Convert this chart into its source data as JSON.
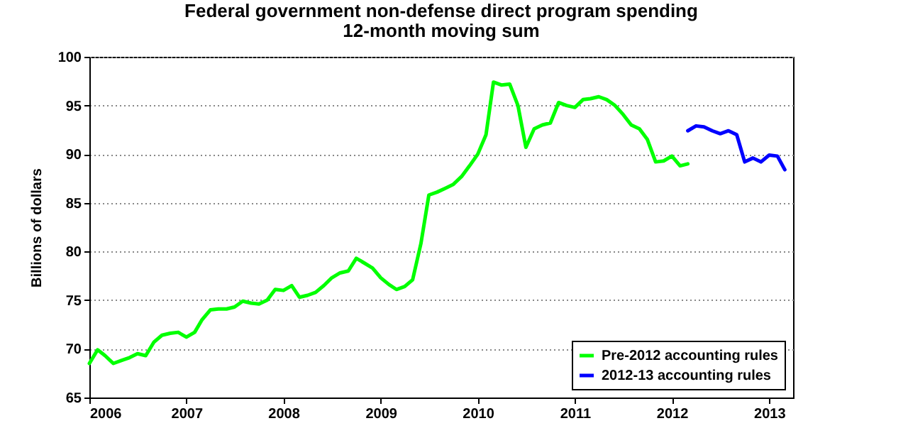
{
  "chart_data": {
    "type": "line",
    "title": "Federal government non-defense direct program spending",
    "subtitle": "12-month moving sum",
    "ylabel": "Billions of dollars",
    "xlim": [
      "2006-01",
      "2013-04"
    ],
    "xticks": [
      "2006",
      "2007",
      "2008",
      "2009",
      "2010",
      "2011",
      "2012",
      "2013"
    ],
    "ylim": [
      65,
      100
    ],
    "yticks": [
      65,
      70,
      75,
      80,
      85,
      90,
      95,
      100
    ],
    "grid": "y",
    "legend": "bottom right",
    "line_style": "solid",
    "series": [
      {
        "name": "Pre-2012 accounting rules",
        "color": "#00ff00",
        "x": [
          "2006-01",
          "2006-02",
          "2006-03",
          "2006-04",
          "2006-05",
          "2006-06",
          "2006-07",
          "2006-08",
          "2006-09",
          "2006-10",
          "2006-11",
          "2006-12",
          "2007-01",
          "2007-02",
          "2007-03",
          "2007-04",
          "2007-05",
          "2007-06",
          "2007-07",
          "2007-08",
          "2007-09",
          "2007-10",
          "2007-11",
          "2007-12",
          "2008-01",
          "2008-02",
          "2008-03",
          "2008-04",
          "2008-05",
          "2008-06",
          "2008-07",
          "2008-08",
          "2008-09",
          "2008-10",
          "2008-11",
          "2008-12",
          "2009-01",
          "2009-02",
          "2009-03",
          "2009-04",
          "2009-05",
          "2009-06",
          "2009-07",
          "2009-08",
          "2009-09",
          "2009-10",
          "2009-11",
          "2009-12",
          "2010-01",
          "2010-02",
          "2010-03",
          "2010-04",
          "2010-05",
          "2010-06",
          "2010-07",
          "2010-08",
          "2010-09",
          "2010-10",
          "2010-11",
          "2010-12",
          "2011-01",
          "2011-02",
          "2011-03",
          "2011-04",
          "2011-05",
          "2011-06",
          "2011-07",
          "2011-08",
          "2011-09",
          "2011-10",
          "2011-11",
          "2011-12",
          "2012-01",
          "2012-02",
          "2012-03"
        ],
        "values": [
          68.5,
          69.9,
          69.3,
          68.5,
          68.8,
          69.1,
          69.5,
          69.3,
          70.7,
          71.4,
          71.6,
          71.7,
          71.2,
          71.7,
          73.0,
          74.0,
          74.1,
          74.1,
          74.3,
          74.9,
          74.7,
          74.6,
          75.0,
          76.1,
          76.0,
          76.5,
          75.3,
          75.5,
          75.8,
          76.5,
          77.3,
          77.8,
          78.0,
          79.3,
          78.8,
          78.3,
          77.3,
          76.6,
          76.1,
          76.4,
          77.1,
          80.8,
          85.8,
          86.1,
          86.5,
          86.9,
          87.7,
          88.8,
          90.0,
          92.0,
          97.4,
          97.1,
          97.2,
          95.0,
          90.7,
          92.6,
          93.0,
          93.2,
          95.3,
          95.0,
          94.8,
          95.6,
          95.7,
          95.9,
          95.6,
          95.0,
          94.1,
          93.0,
          92.6,
          91.5,
          89.2,
          89.3,
          89.8,
          88.8,
          89.0
        ]
      },
      {
        "name": "2012-13 accounting rules",
        "color": "#0000ff",
        "x": [
          "2012-03",
          "2012-04",
          "2012-05",
          "2012-06",
          "2012-07",
          "2012-08",
          "2012-09",
          "2012-10",
          "2012-11",
          "2012-12",
          "2013-01",
          "2013-02",
          "2013-03"
        ],
        "values": [
          92.4,
          92.9,
          92.8,
          92.4,
          92.1,
          92.4,
          92.0,
          89.2,
          89.6,
          89.2,
          89.9,
          89.8,
          88.4
        ]
      }
    ]
  }
}
